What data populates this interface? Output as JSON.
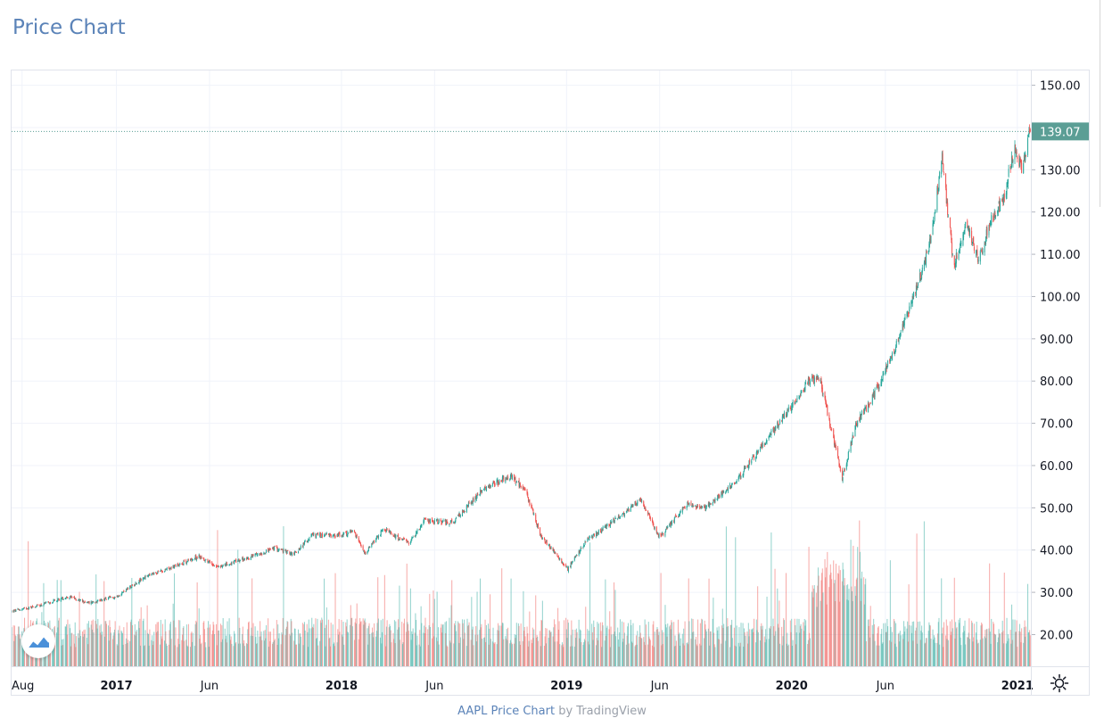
{
  "page": {
    "title": "Price Chart"
  },
  "attribution": {
    "link_text": "AAPL Price Chart",
    "by_text": " by TradingView"
  },
  "icons": {
    "logo": "tradingview-logo-icon",
    "settings": "gear-icon"
  },
  "colors": {
    "up": "#26a69a",
    "down": "#ef5350",
    "price_label_bg": "#5b9e95",
    "title": "#5b83b8"
  },
  "chart_data": {
    "type": "candlestick",
    "symbol": "AAPL",
    "last_price": "139.07",
    "x_tick_labels": [
      "Aug",
      "2017",
      "Jun",
      "2018",
      "Jun",
      "2019",
      "Jun",
      "2020",
      "Jun",
      "2021"
    ],
    "x_tick_dates": [
      "2016-08-01",
      "2017-01-01",
      "2017-06-01",
      "2018-01-01",
      "2018-06-01",
      "2019-01-01",
      "2019-06-01",
      "2020-01-01",
      "2020-06-01",
      "2021-01-01"
    ],
    "y_tick_labels": [
      "150.00",
      "140.00",
      "130.00",
      "120.00",
      "110.00",
      "100.00",
      "90.00",
      "80.00",
      "70.00",
      "60.00",
      "50.00",
      "40.00",
      "30.00",
      "20.00"
    ],
    "y_range": [
      12.5,
      153.5
    ],
    "x_range": [
      "2016-07-15",
      "2021-01-23"
    ],
    "price_path": [
      [
        "2016-07-15",
        25.5
      ],
      [
        "2016-09-01",
        27.0
      ],
      [
        "2016-10-15",
        29.0
      ],
      [
        "2016-11-15",
        27.5
      ],
      [
        "2017-01-01",
        29.0
      ],
      [
        "2017-02-15",
        33.5
      ],
      [
        "2017-04-01",
        36.0
      ],
      [
        "2017-05-15",
        38.5
      ],
      [
        "2017-06-15",
        36.0
      ],
      [
        "2017-08-01",
        38.0
      ],
      [
        "2017-09-15",
        40.5
      ],
      [
        "2017-10-15",
        39.0
      ],
      [
        "2017-11-15",
        43.5
      ],
      [
        "2018-01-01",
        43.5
      ],
      [
        "2018-01-20",
        44.5
      ],
      [
        "2018-02-08",
        39.0
      ],
      [
        "2018-03-10",
        45.0
      ],
      [
        "2018-04-20",
        41.5
      ],
      [
        "2018-05-15",
        47.0
      ],
      [
        "2018-07-01",
        46.5
      ],
      [
        "2018-08-15",
        54.0
      ],
      [
        "2018-10-01",
        57.5
      ],
      [
        "2018-10-25",
        54.5
      ],
      [
        "2018-11-20",
        43.5
      ],
      [
        "2019-01-03",
        35.5
      ],
      [
        "2019-02-01",
        42.0
      ],
      [
        "2019-03-15",
        46.5
      ],
      [
        "2019-05-01",
        52.0
      ],
      [
        "2019-06-01",
        43.0
      ],
      [
        "2019-07-15",
        51.0
      ],
      [
        "2019-08-15",
        50.0
      ],
      [
        "2019-10-01",
        56.0
      ],
      [
        "2019-11-15",
        65.0
      ],
      [
        "2020-01-01",
        74.0
      ],
      [
        "2020-01-25",
        79.5
      ],
      [
        "2020-02-15",
        81.0
      ],
      [
        "2020-03-23",
        57.0
      ],
      [
        "2020-04-15",
        70.0
      ],
      [
        "2020-05-15",
        77.0
      ],
      [
        "2020-06-15",
        87.0
      ],
      [
        "2020-07-31",
        106.0
      ],
      [
        "2020-08-15",
        115.0
      ],
      [
        "2020-09-01",
        133.0
      ],
      [
        "2020-09-20",
        107.0
      ],
      [
        "2020-10-10",
        118.0
      ],
      [
        "2020-10-30",
        109.0
      ],
      [
        "2020-11-20",
        118.0
      ],
      [
        "2020-12-10",
        123.0
      ],
      [
        "2020-12-28",
        136.0
      ],
      [
        "2021-01-08",
        130.0
      ],
      [
        "2021-01-22",
        139.07
      ]
    ],
    "volume_avg_range": [
      17,
      24
    ],
    "volume_spike_max": 47,
    "grid": true,
    "price_scale": "right"
  }
}
